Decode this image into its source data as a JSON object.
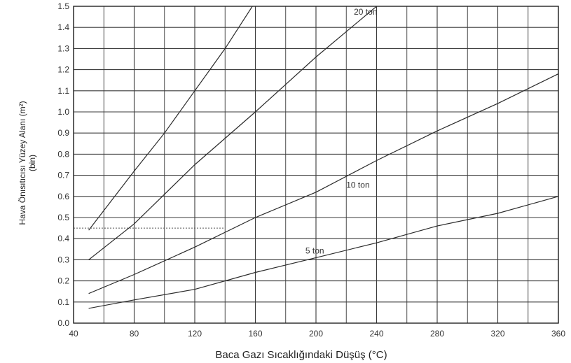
{
  "chart_data": {
    "type": "line",
    "title": "",
    "xlabel": "Baca Gazı Sıcaklığındaki Düşüş (°C)",
    "ylabel_line1": "Hava Önısıtıcısı Yüzey Alanı (m²)",
    "ylabel_line2": "(bin)",
    "xlim": [
      40,
      360
    ],
    "ylim": [
      0,
      1.5
    ],
    "x_ticks": [
      40,
      80,
      120,
      160,
      200,
      240,
      280,
      320,
      360
    ],
    "y_ticks": [
      0.0,
      0.1,
      0.2,
      0.3,
      0.4,
      0.5,
      0.6,
      0.7,
      0.8,
      0.9,
      1.0,
      1.1,
      1.2,
      1.3,
      1.4,
      1.5
    ],
    "grid": true,
    "series": [
      {
        "name": "",
        "x": [
          50,
          80,
          100,
          120,
          140,
          158
        ],
        "y": [
          0.44,
          0.72,
          0.9,
          1.1,
          1.3,
          1.5
        ]
      },
      {
        "name": "20 ton",
        "x": [
          50,
          80,
          120,
          160,
          200,
          240
        ],
        "y": [
          0.3,
          0.47,
          0.75,
          1.0,
          1.26,
          1.5
        ]
      },
      {
        "name": "10 ton",
        "x": [
          50,
          80,
          120,
          160,
          200,
          240,
          280,
          320,
          360
        ],
        "y": [
          0.14,
          0.23,
          0.36,
          0.5,
          0.62,
          0.77,
          0.91,
          1.04,
          1.18
        ]
      },
      {
        "name": "5 ton",
        "x": [
          50,
          80,
          120,
          160,
          200,
          240,
          280,
          320,
          360
        ],
        "y": [
          0.07,
          0.11,
          0.16,
          0.24,
          0.31,
          0.38,
          0.46,
          0.52,
          0.6
        ]
      }
    ],
    "reference_lines": [
      {
        "from": [
          40,
          0.45
        ],
        "to": [
          140,
          0.45
        ]
      }
    ],
    "colors": {
      "line": "#2b2b2b",
      "grid": "#3a3a3a",
      "text": "#333333"
    }
  }
}
